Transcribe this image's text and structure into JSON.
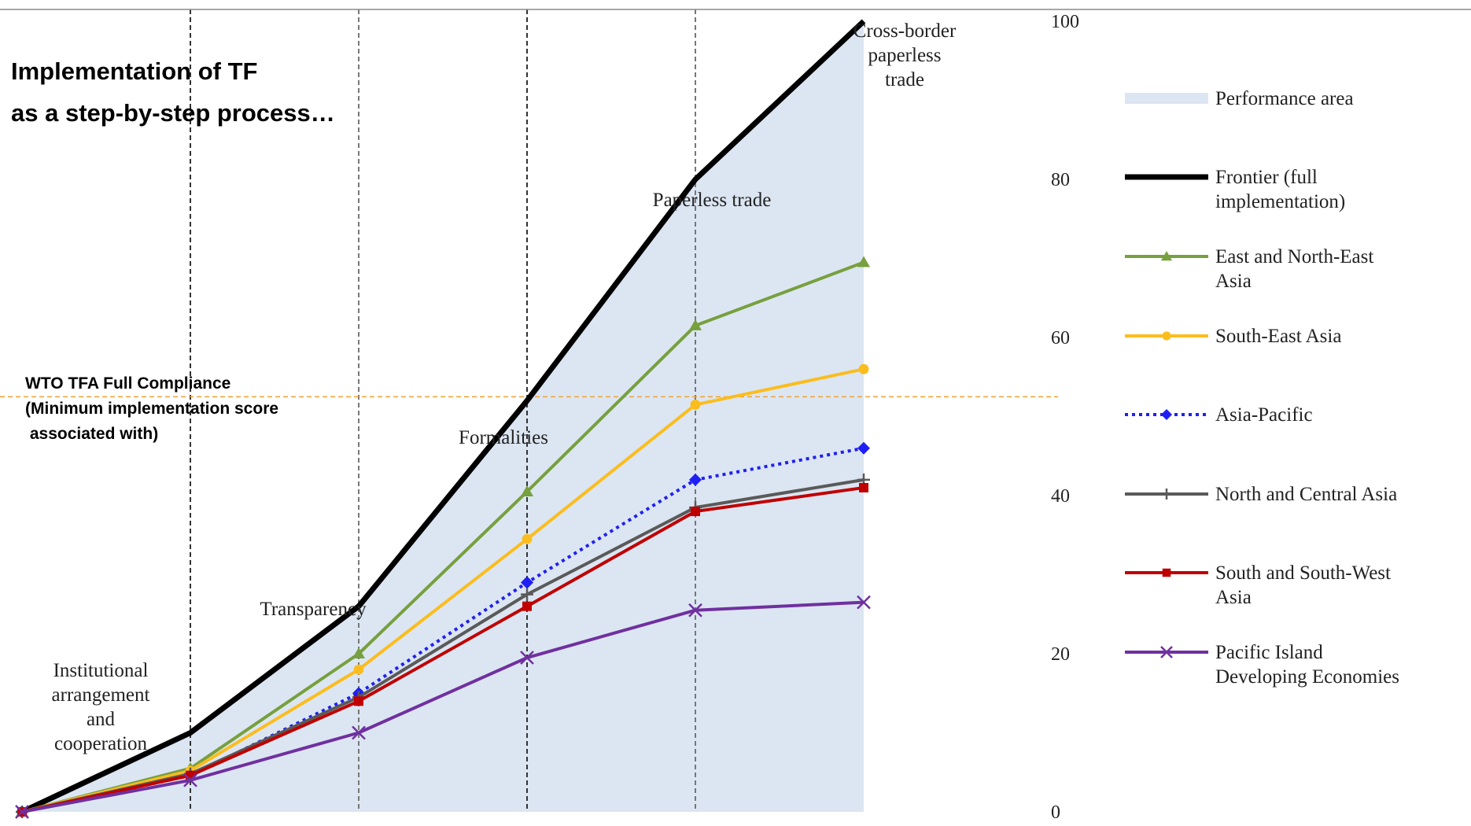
{
  "chart_data": {
    "type": "line",
    "title": [
      "Implementation of TF",
      "as a step-by-step process…"
    ],
    "annotation": [
      "WTO TFA Full Compliance",
      "(Minimum implementation score",
      " associated with)"
    ],
    "threshold_value": 52.5,
    "stage_labels": [
      [
        "Institutional",
        "arrangement",
        "and",
        "cooperation"
      ],
      [
        "Transparency"
      ],
      [
        "Formalities"
      ],
      [
        "Paperless trade"
      ],
      [
        "Cross-border",
        "paperless",
        "trade"
      ]
    ],
    "x": [
      0,
      1,
      2,
      3,
      4,
      5
    ],
    "ylim": [
      0,
      100
    ],
    "yticks": [
      "0",
      "20",
      "40",
      "60",
      "80",
      "100"
    ],
    "area": {
      "name": [
        "Performance area"
      ],
      "color": "#dce6f2",
      "values": [
        0,
        10,
        26,
        52,
        80,
        100
      ]
    },
    "series": [
      {
        "name": [
          "Frontier (full",
          "implementation)"
        ],
        "color": "#000000",
        "marker": "none",
        "dash": false,
        "width": 7,
        "values": [
          0,
          10,
          26,
          52,
          80,
          100
        ]
      },
      {
        "name": [
          "East and North-East",
          "Asia"
        ],
        "color": "#77a03e",
        "marker": "triangle",
        "dash": false,
        "width": 4,
        "values": [
          0,
          5.5,
          20,
          40.5,
          61.5,
          69.5
        ]
      },
      {
        "name": [
          "South-East Asia"
        ],
        "color": "#fbbd1e",
        "marker": "circle",
        "dash": false,
        "width": 4,
        "values": [
          0,
          5.2,
          18,
          34.5,
          51.5,
          56
        ]
      },
      {
        "name": [
          "Asia-Pacific"
        ],
        "color": "#1f1ff5",
        "marker": "diamond",
        "dash": true,
        "width": 4,
        "values": [
          0,
          4.6,
          15,
          29,
          42,
          46
        ]
      },
      {
        "name": [
          "North and Central Asia"
        ],
        "color": "#5a5a5a",
        "marker": "plus",
        "dash": false,
        "width": 4,
        "values": [
          0,
          4.8,
          14.5,
          27.5,
          38.5,
          42
        ]
      },
      {
        "name": [
          "South and South-West",
          "Asia"
        ],
        "color": "#c00000",
        "marker": "square",
        "dash": false,
        "width": 4,
        "values": [
          0,
          4.6,
          14,
          26,
          38,
          41
        ]
      },
      {
        "name": [
          "Pacific Island",
          "Developing Economies"
        ],
        "color": "#7030a0",
        "marker": "x",
        "dash": false,
        "width": 4,
        "values": [
          0,
          4,
          10,
          19.5,
          25.5,
          26.5
        ]
      }
    ]
  }
}
